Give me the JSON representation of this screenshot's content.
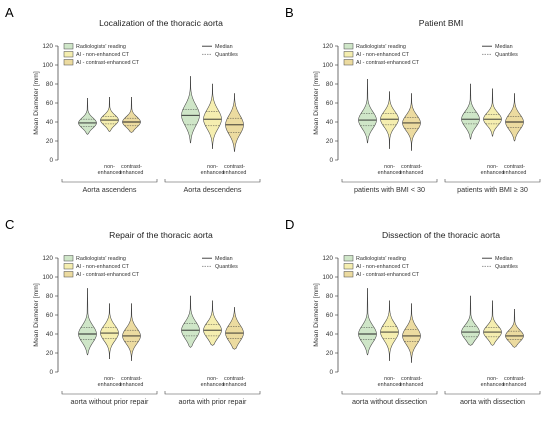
{
  "colors": {
    "radiologist": "#cfe6c8",
    "ai_nonenhanced": "#f5eeb0",
    "ai_contrast": "#ecdba0",
    "outline": "#444444"
  },
  "chart_data": [
    {
      "panel": "A",
      "type": "violin",
      "title": "Localization of the thoracic aorta",
      "ylabel": "Mean Diameter [mm]",
      "ylim": [
        0,
        120
      ],
      "yticks": [
        0,
        20,
        40,
        60,
        80,
        100,
        120
      ],
      "legend_series": [
        "Radiologists' reading",
        "AI - non-enhanced CT",
        "AI - contrast-enhanced CT"
      ],
      "legend_lines": [
        "Median",
        "Quantiles"
      ],
      "sublabels": [
        "non-\nenhanced",
        "contrast-\nenhanced"
      ],
      "groups": [
        {
          "label": "Aorta ascendens",
          "violins": [
            {
              "series": "Radiologists' reading",
              "min": 27,
              "q1": 35,
              "median": 39,
              "q3": 43,
              "max": 65
            },
            {
              "series": "AI - non-enhanced CT",
              "min": 30,
              "q1": 38,
              "median": 42,
              "q3": 46,
              "max": 66
            },
            {
              "series": "AI - contrast-enhanced CT",
              "min": 29,
              "q1": 36,
              "median": 40,
              "q3": 44,
              "max": 66
            }
          ]
        },
        {
          "label": "Aorta descendens",
          "violins": [
            {
              "series": "Radiologists' reading",
              "min": 18,
              "q1": 37,
              "median": 47,
              "q3": 53,
              "max": 88
            },
            {
              "series": "AI - non-enhanced CT",
              "min": 12,
              "q1": 36,
              "median": 43,
              "q3": 51,
              "max": 80
            },
            {
              "series": "AI - contrast-enhanced CT",
              "min": 9,
              "q1": 29,
              "median": 37,
              "q3": 44,
              "max": 70
            }
          ]
        }
      ]
    },
    {
      "panel": "B",
      "type": "violin",
      "title": "Patient BMI",
      "ylabel": "Mean Diameter [mm]",
      "ylim": [
        0,
        120
      ],
      "yticks": [
        0,
        20,
        40,
        60,
        80,
        100,
        120
      ],
      "legend_series": [
        "Radiologists' reading",
        "AI - non-enhanced CT",
        "AI - contrast-enhanced CT"
      ],
      "legend_lines": [
        "Median",
        "Quantiles"
      ],
      "sublabels": [
        "non-\nenhanced",
        "contrast-\nenhanced"
      ],
      "groups": [
        {
          "label": "patients with BMI < 30",
          "violins": [
            {
              "series": "Radiologists' reading",
              "min": 18,
              "q1": 36,
              "median": 42,
              "q3": 49,
              "max": 85
            },
            {
              "series": "AI - non-enhanced CT",
              "min": 12,
              "q1": 37,
              "median": 43,
              "q3": 49,
              "max": 72
            },
            {
              "series": "AI - contrast-enhanced CT",
              "min": 10,
              "q1": 33,
              "median": 39,
              "q3": 45,
              "max": 70
            }
          ]
        },
        {
          "label": "patients with BMI ≥ 30",
          "violins": [
            {
              "series": "Radiologists' reading",
              "min": 22,
              "q1": 38,
              "median": 43,
              "q3": 50,
              "max": 80
            },
            {
              "series": "AI - non-enhanced CT",
              "min": 25,
              "q1": 38,
              "median": 43,
              "q3": 48,
              "max": 75
            },
            {
              "series": "AI - contrast-enhanced CT",
              "min": 20,
              "q1": 34,
              "median": 40,
              "q3": 46,
              "max": 70
            }
          ]
        }
      ]
    },
    {
      "panel": "C",
      "type": "violin",
      "title": "Repair of the thoracic aorta",
      "ylabel": "Mean Diameter [mm]",
      "ylim": [
        0,
        120
      ],
      "yticks": [
        0,
        20,
        40,
        60,
        80,
        100,
        120
      ],
      "legend_series": [
        "Radiologists' reading",
        "AI - non-enhanced CT",
        "AI - contrast-enhanced CT"
      ],
      "legend_lines": [
        "Median",
        "Quantiles"
      ],
      "sublabels": [
        "non-\nenhanced",
        "contrast-\nenhanced"
      ],
      "groups": [
        {
          "label": "aorta without prior repair",
          "violins": [
            {
              "series": "Radiologists' reading",
              "min": 18,
              "q1": 34,
              "median": 40,
              "q3": 47,
              "max": 88
            },
            {
              "series": "AI - non-enhanced CT",
              "min": 14,
              "q1": 35,
              "median": 41,
              "q3": 47,
              "max": 72
            },
            {
              "series": "AI - contrast-enhanced CT",
              "min": 12,
              "q1": 32,
              "median": 38,
              "q3": 44,
              "max": 72
            }
          ]
        },
        {
          "label": "aorta with prior repair",
          "violins": [
            {
              "series": "Radiologists' reading",
              "min": 26,
              "q1": 38,
              "median": 44,
              "q3": 51,
              "max": 80
            },
            {
              "series": "AI - non-enhanced CT",
              "min": 28,
              "q1": 38,
              "median": 44,
              "q3": 50,
              "max": 75
            },
            {
              "series": "AI - contrast-enhanced CT",
              "min": 24,
              "q1": 35,
              "median": 41,
              "q3": 48,
              "max": 68
            }
          ]
        }
      ]
    },
    {
      "panel": "D",
      "type": "violin",
      "title": "Dissection of the thoracic aorta",
      "ylabel": "Mean Diameter [mm]",
      "ylim": [
        0,
        120
      ],
      "yticks": [
        0,
        20,
        40,
        60,
        80,
        100,
        120
      ],
      "legend_series": [
        "Radiologists' reading",
        "AI - non-enhanced CT",
        "AI - contrast-enhanced CT"
      ],
      "legend_lines": [
        "Median",
        "Quantiles"
      ],
      "sublabels": [
        "non-\nenhanced",
        "contrast-\nenhanced"
      ],
      "groups": [
        {
          "label": "aorta without dissection",
          "violins": [
            {
              "series": "Radiologists' reading",
              "min": 18,
              "q1": 34,
              "median": 40,
              "q3": 47,
              "max": 88
            },
            {
              "series": "AI - non-enhanced CT",
              "min": 12,
              "q1": 35,
              "median": 42,
              "q3": 48,
              "max": 75
            },
            {
              "series": "AI - contrast-enhanced CT",
              "min": 10,
              "q1": 32,
              "median": 38,
              "q3": 45,
              "max": 72
            }
          ]
        },
        {
          "label": "aorta with dissection",
          "violins": [
            {
              "series": "Radiologists' reading",
              "min": 28,
              "q1": 37,
              "median": 42,
              "q3": 48,
              "max": 80
            },
            {
              "series": "AI - non-enhanced CT",
              "min": 28,
              "q1": 37,
              "median": 42,
              "q3": 47,
              "max": 75
            },
            {
              "series": "AI - contrast-enhanced CT",
              "min": 26,
              "q1": 34,
              "median": 38,
              "q3": 43,
              "max": 66
            }
          ]
        }
      ]
    }
  ]
}
